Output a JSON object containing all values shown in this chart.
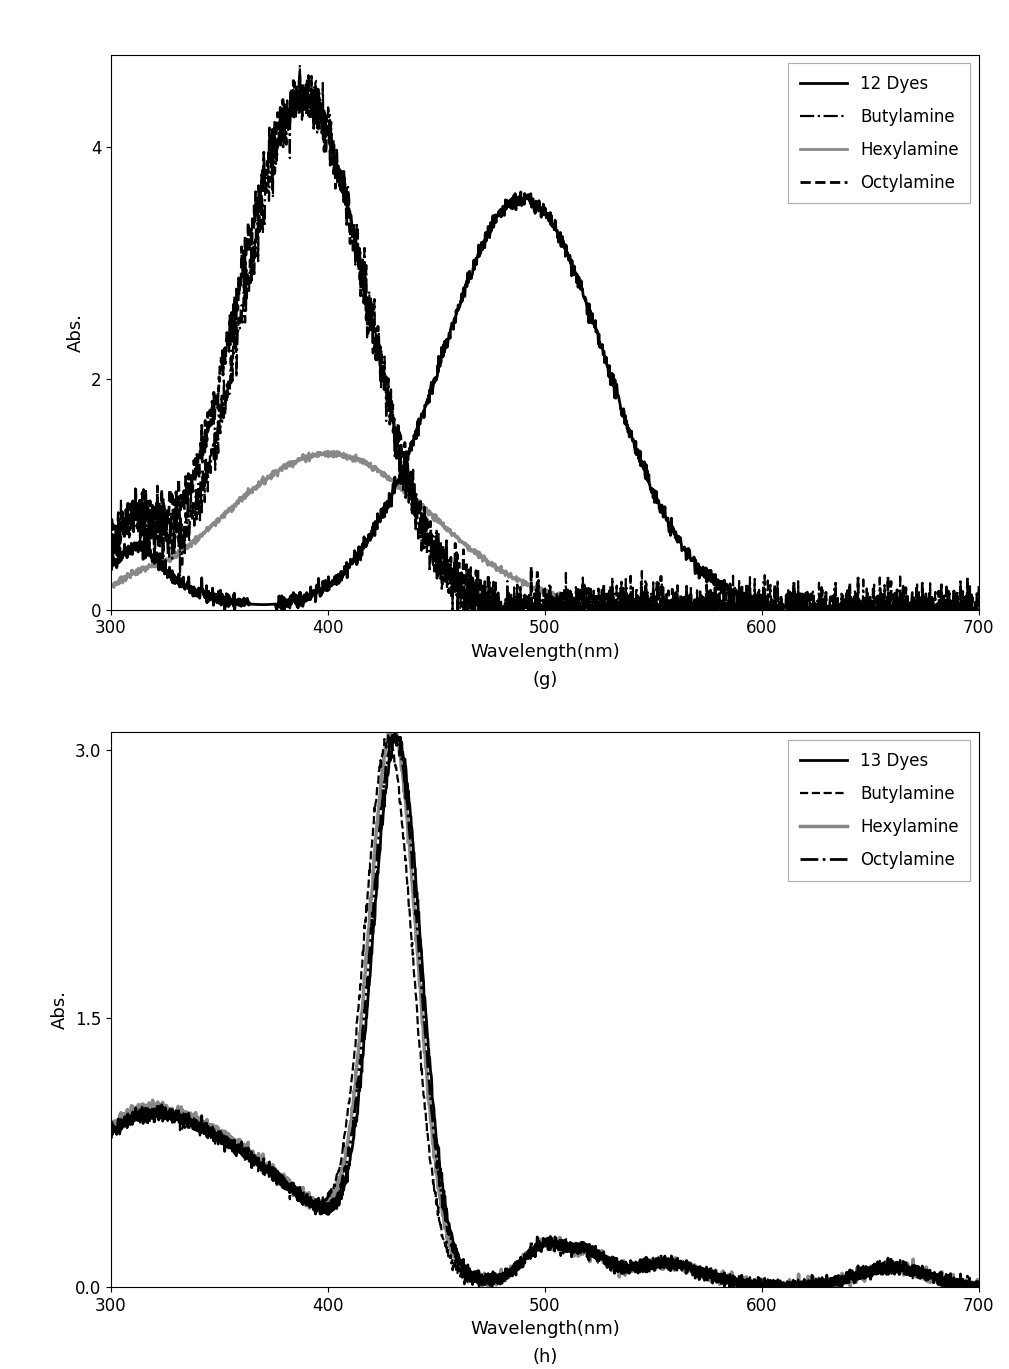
{
  "panel_g": {
    "title_label": "(g)",
    "xlabel": "Wavelength(nm)",
    "ylabel": "Abs.",
    "xlim": [
      300,
      700
    ],
    "ylim": [
      0,
      4.8
    ],
    "yticks": [
      0,
      2,
      4
    ],
    "xticks": [
      300,
      400,
      500,
      600,
      700
    ],
    "legend_labels": [
      "12 Dyes",
      "Butylamine",
      "Hexylamine",
      "Octylamine"
    ],
    "legend_styles": [
      {
        "color": "#000000",
        "linestyle": "-",
        "linewidth": 2.0
      },
      {
        "color": "#000000",
        "linestyle": "-.",
        "linewidth": 1.6
      },
      {
        "color": "#888888",
        "linestyle": "-",
        "linewidth": 2.0
      },
      {
        "color": "#000000",
        "linestyle": "--",
        "linewidth": 2.0
      }
    ]
  },
  "panel_h": {
    "title_label": "(h)",
    "xlabel": "Wavelength(nm)",
    "ylabel": "Abs.",
    "xlim": [
      300,
      700
    ],
    "ylim": [
      0,
      3.1
    ],
    "yticks": [
      0,
      1.5,
      3
    ],
    "xticks": [
      300,
      400,
      500,
      600,
      700
    ],
    "legend_labels": [
      "13 Dyes",
      "Butylamine",
      "Hexylamine",
      "Octylamine"
    ],
    "legend_styles": [
      {
        "color": "#000000",
        "linestyle": "-",
        "linewidth": 2.0
      },
      {
        "color": "#000000",
        "linestyle": "--",
        "linewidth": 1.6
      },
      {
        "color": "#888888",
        "linestyle": "-",
        "linewidth": 2.5
      },
      {
        "color": "#000000",
        "linestyle": "-.",
        "linewidth": 2.0
      }
    ]
  },
  "background_color": "#ffffff",
  "figure_label_fontsize": 13,
  "axis_label_fontsize": 13,
  "tick_fontsize": 12,
  "legend_fontsize": 12
}
